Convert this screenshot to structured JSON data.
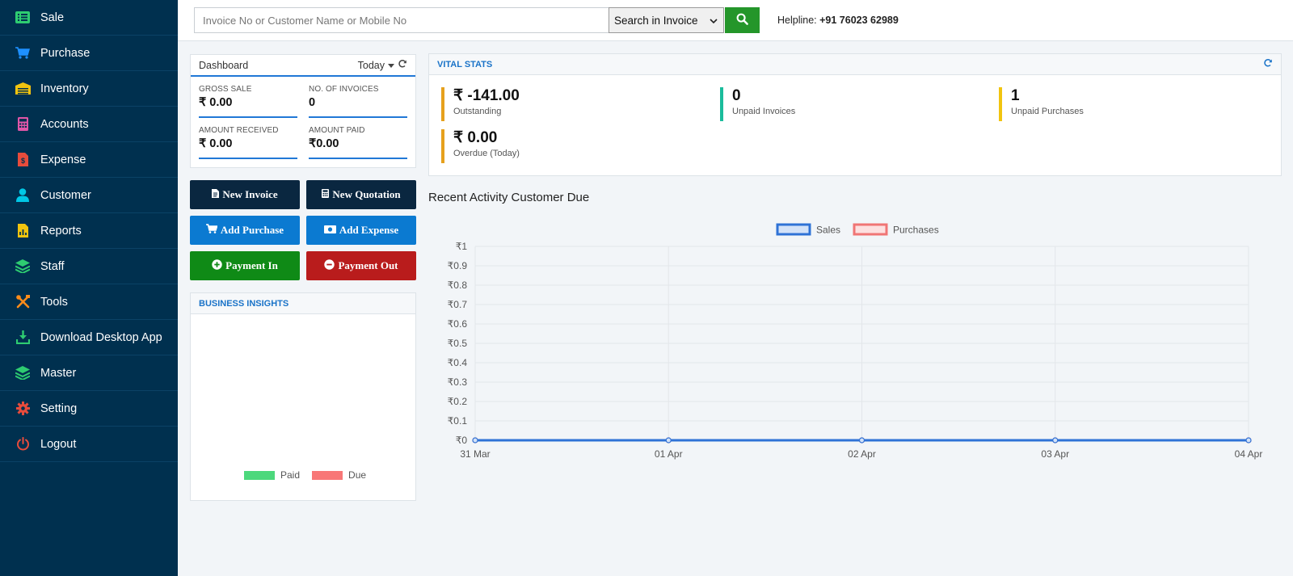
{
  "sidebar": {
    "items": [
      {
        "label": "Sale",
        "icon": "list-icon",
        "color": "#2ecc71"
      },
      {
        "label": "Purchase",
        "icon": "cart-icon",
        "color": "#1e90ff"
      },
      {
        "label": "Inventory",
        "icon": "warehouse-icon",
        "color": "#f1c40f"
      },
      {
        "label": "Accounts",
        "icon": "calculator-icon",
        "color": "#e056a8"
      },
      {
        "label": "Expense",
        "icon": "invoice-dollar-icon",
        "color": "#e74c3c"
      },
      {
        "label": "Customer",
        "icon": "user-icon",
        "color": "#00c8e6"
      },
      {
        "label": "Reports",
        "icon": "report-file-icon",
        "color": "#f1c40f"
      },
      {
        "label": "Staff",
        "icon": "layers-icon",
        "color": "#2ecc71"
      },
      {
        "label": "Tools",
        "icon": "tools-icon",
        "color": "#ff8c1a"
      },
      {
        "label": "Download Desktop App",
        "icon": "download-icon",
        "color": "#2ecc71"
      },
      {
        "label": "Master",
        "icon": "layers-icon",
        "color": "#2ecc71"
      },
      {
        "label": "Setting",
        "icon": "gear-icon",
        "color": "#e74c3c"
      },
      {
        "label": "Logout",
        "icon": "power-icon",
        "color": "#e74c3c"
      }
    ]
  },
  "search": {
    "placeholder": "Invoice No or Customer Name or Mobile No",
    "value": "",
    "scope": "Search in Invoice",
    "helpline_label": "Helpline:",
    "helpline_number": "+91 76023 62989"
  },
  "dashboard": {
    "title": "Dashboard",
    "period": "Today",
    "stats": [
      {
        "label": "GROSS SALE",
        "value": "₹ 0.00"
      },
      {
        "label": "NO. OF INVOICES",
        "value": "0"
      },
      {
        "label": "AMOUNT RECEIVED",
        "value": "₹ 0.00"
      },
      {
        "label": "AMOUNT PAID",
        "value": "₹0.00"
      }
    ]
  },
  "actions": {
    "new_invoice": "New Invoice",
    "new_quotation": "New Quotation",
    "add_purchase": "Add Purchase",
    "add_expense": "Add Expense",
    "payment_in": "Payment In",
    "payment_out": "Payment Out"
  },
  "insights": {
    "title": "BUSINESS INSIGHTS",
    "legend": [
      {
        "label": "Paid",
        "color": "#4cd87c"
      },
      {
        "label": "Due",
        "color": "#f87777"
      }
    ]
  },
  "vital": {
    "title": "VITAL STATS",
    "items": [
      {
        "value": "₹ -141.00",
        "label": "Outstanding",
        "color": "#e6a11d"
      },
      {
        "value": "0",
        "label": "Unpaid Invoices",
        "color": "#1abc9c"
      },
      {
        "value": "1",
        "label": "Unpaid Purchases",
        "color": "#f1c40f"
      },
      {
        "value": "₹ 0.00",
        "label": "Overdue (Today)",
        "color": "#e6a11d"
      }
    ]
  },
  "recent": {
    "title": "Recent Activity Customer Due"
  },
  "chart_data": {
    "type": "line",
    "x": [
      "31 Mar",
      "01 Apr",
      "02 Apr",
      "03 Apr",
      "04 Apr"
    ],
    "series": [
      {
        "name": "Sales",
        "values": [
          0,
          0,
          0,
          0,
          0
        ],
        "color": "#2f72d6",
        "fill": "#d3e2f8"
      },
      {
        "name": "Purchases",
        "values": [
          0,
          0,
          0,
          0,
          0
        ],
        "color": "#f07575",
        "fill": "#fde0e0"
      }
    ],
    "ylim": [
      0,
      1
    ],
    "yticks": [
      "₹0",
      "₹0.1",
      "₹0.2",
      "₹0.3",
      "₹0.4",
      "₹0.5",
      "₹0.6",
      "₹0.7",
      "₹0.8",
      "₹0.9",
      "₹1"
    ],
    "legend": "top-center",
    "grid": true
  }
}
